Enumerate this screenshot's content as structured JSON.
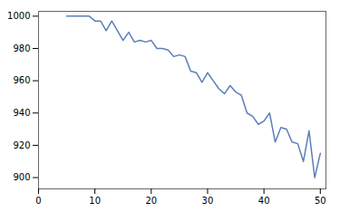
{
  "chart_data": {
    "type": "line",
    "x": [
      5,
      6,
      7,
      8,
      9,
      10,
      11,
      12,
      13,
      14,
      15,
      16,
      17,
      18,
      19,
      20,
      21,
      22,
      23,
      24,
      25,
      26,
      27,
      28,
      29,
      30,
      31,
      32,
      33,
      34,
      35,
      36,
      37,
      38,
      39,
      40,
      41,
      42,
      43,
      44,
      45,
      46,
      47,
      48,
      49,
      50
    ],
    "values": [
      1000,
      1000,
      1000,
      1000,
      1000,
      997,
      997,
      991,
      997,
      991,
      985,
      990,
      984,
      985,
      984,
      985,
      980,
      980,
      979,
      975,
      976,
      975,
      966,
      965,
      959,
      965,
      960,
      955,
      952,
      957,
      953,
      951,
      940,
      938,
      933,
      935,
      940,
      922,
      931,
      930,
      922,
      921,
      910,
      929,
      900,
      915
    ],
    "color": "#5b7fba",
    "xlim": [
      0,
      51
    ],
    "ylim": [
      893,
      1003
    ],
    "xticks": [
      0,
      10,
      20,
      30,
      40,
      50
    ],
    "yticks": [
      900,
      920,
      940,
      960,
      980,
      1000
    ],
    "grid": false
  }
}
